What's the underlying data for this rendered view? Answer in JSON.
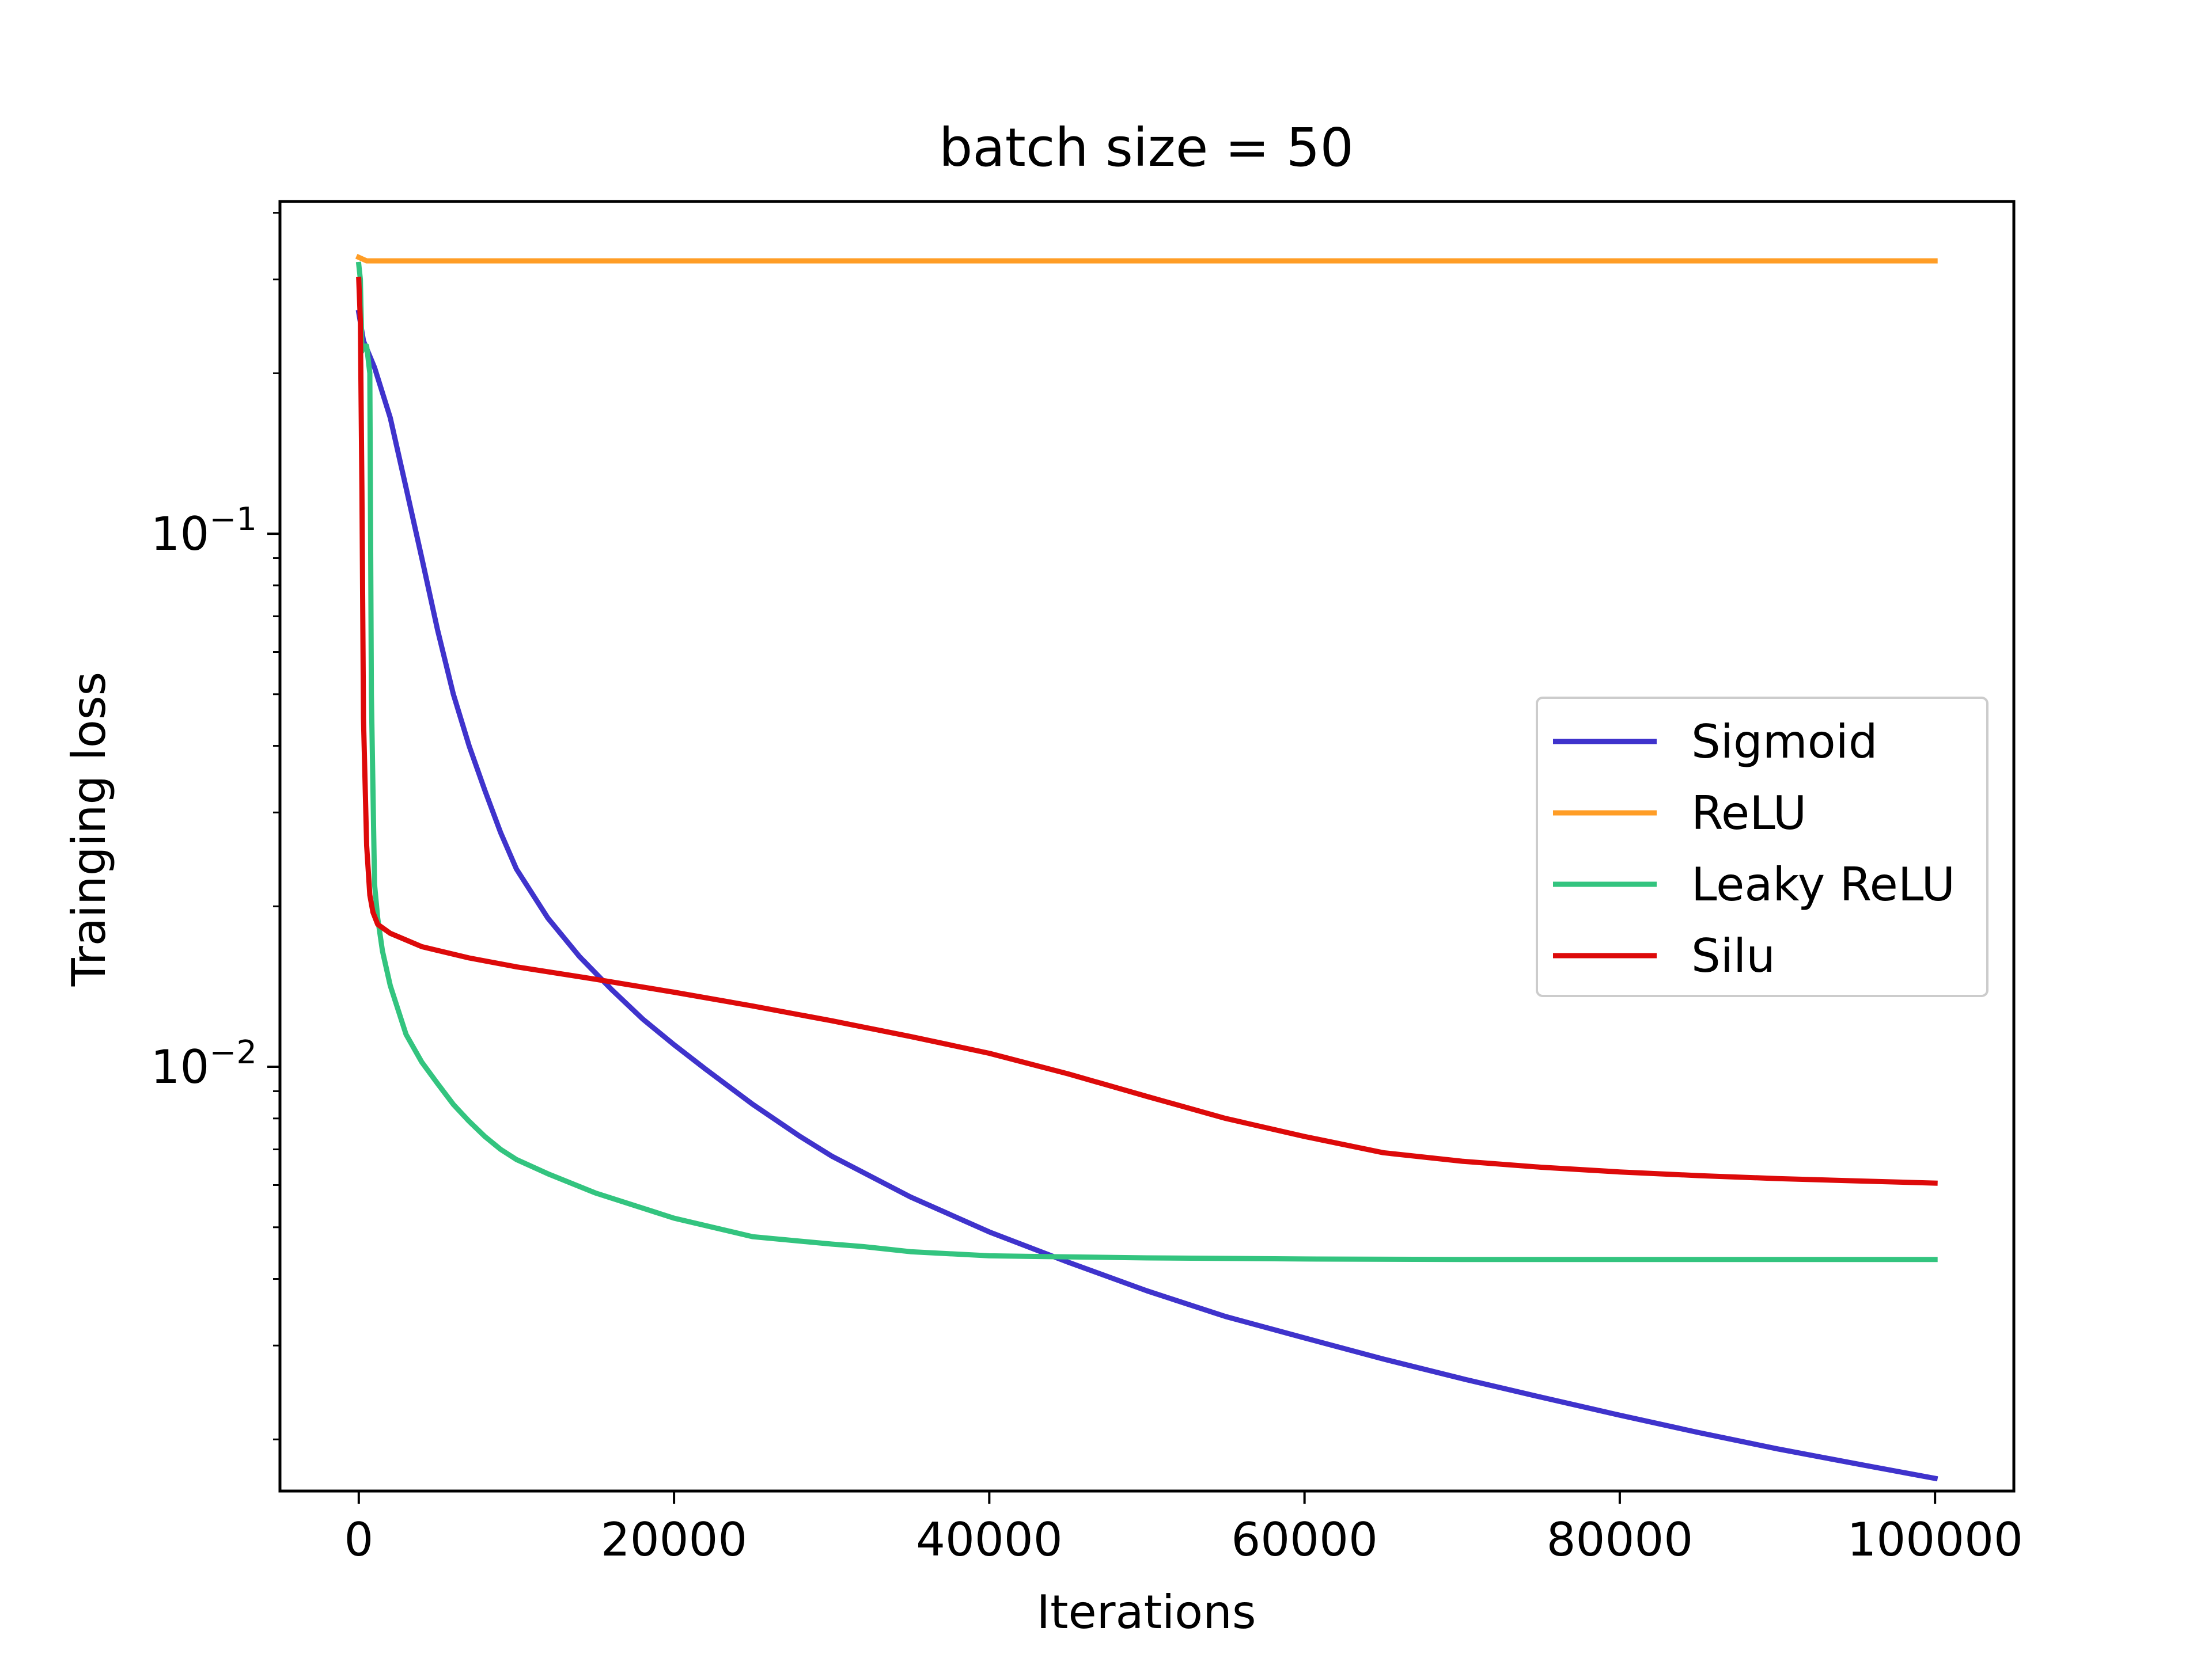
{
  "chart_data": {
    "type": "line",
    "title": "batch size = 50",
    "xlabel": "Iterations",
    "ylabel": "Trainging loss",
    "yscale": "log",
    "xlim": [
      -5000,
      105000
    ],
    "ylim": [
      0.0016,
      0.42
    ],
    "xticks": [
      0,
      20000,
      40000,
      60000,
      80000,
      100000
    ],
    "xtick_labels": [
      "0",
      "20000",
      "40000",
      "60000",
      "80000",
      "100000"
    ],
    "yticks": [
      0.1,
      0.01
    ],
    "ytick_labels": [
      {
        "base": "10",
        "exp": "−1"
      },
      {
        "base": "10",
        "exp": "−2"
      }
    ],
    "grid": false,
    "legend_position": "center-right",
    "series": [
      {
        "name": "Sigmoid",
        "color": "#3f33cc",
        "x": [
          0,
          300,
          1000,
          2000,
          3000,
          4000,
          5000,
          6000,
          7000,
          8000,
          9000,
          10000,
          12000,
          14000,
          16000,
          18000,
          20000,
          22000,
          25000,
          28000,
          30000,
          35000,
          40000,
          45000,
          50000,
          55000,
          60000,
          65000,
          70000,
          75000,
          80000,
          85000,
          90000,
          95000,
          100000
        ],
        "y": [
          0.26,
          0.23,
          0.205,
          0.165,
          0.122,
          0.09,
          0.066,
          0.05,
          0.04,
          0.033,
          0.0275,
          0.0235,
          0.019,
          0.0161,
          0.014,
          0.0123,
          0.011,
          0.0099,
          0.0085,
          0.0074,
          0.0068,
          0.0057,
          0.0049,
          0.0043,
          0.0038,
          0.0034,
          0.0031,
          0.00283,
          0.0026,
          0.0024,
          0.00222,
          0.00206,
          0.00192,
          0.0018,
          0.00169
        ]
      },
      {
        "name": "ReLU",
        "color": "#ff9d26",
        "x": [
          0,
          500,
          100000
        ],
        "y": [
          0.33,
          0.325,
          0.325
        ]
      },
      {
        "name": "Leaky ReLU",
        "color": "#33c47f",
        "x": [
          0,
          100,
          200,
          300,
          500,
          700,
          800,
          1000,
          1200,
          1500,
          2000,
          3000,
          4000,
          5000,
          6000,
          7000,
          8000,
          9000,
          10000,
          12000,
          15000,
          20000,
          25000,
          30000,
          32000,
          35000,
          40000,
          45000,
          50000,
          60000,
          70000,
          80000,
          90000,
          100000
        ],
        "y": [
          0.32,
          0.3,
          0.22,
          0.225,
          0.225,
          0.2,
          0.05,
          0.022,
          0.019,
          0.0165,
          0.0142,
          0.0115,
          0.0102,
          0.0093,
          0.0085,
          0.0079,
          0.0074,
          0.007,
          0.0067,
          0.0063,
          0.0058,
          0.0052,
          0.0048,
          0.00465,
          0.0046,
          0.0045,
          0.00442,
          0.0044,
          0.00438,
          0.00436,
          0.00435,
          0.00435,
          0.00435,
          0.00435
        ]
      },
      {
        "name": "Silu",
        "color": "#dd0a0a",
        "x": [
          0,
          100,
          200,
          300,
          500,
          700,
          900,
          1200,
          2000,
          4000,
          7000,
          10000,
          15000,
          20000,
          25000,
          30000,
          35000,
          40000,
          45000,
          50000,
          55000,
          60000,
          65000,
          70000,
          75000,
          80000,
          85000,
          90000,
          95000,
          100000
        ],
        "y": [
          0.3,
          0.25,
          0.12,
          0.045,
          0.026,
          0.021,
          0.0195,
          0.0185,
          0.0178,
          0.0168,
          0.016,
          0.0154,
          0.0146,
          0.0138,
          0.013,
          0.0122,
          0.0114,
          0.0106,
          0.0097,
          0.0088,
          0.008,
          0.0074,
          0.0069,
          0.00665,
          0.00648,
          0.00635,
          0.00625,
          0.00617,
          0.00611,
          0.00605
        ]
      }
    ]
  }
}
